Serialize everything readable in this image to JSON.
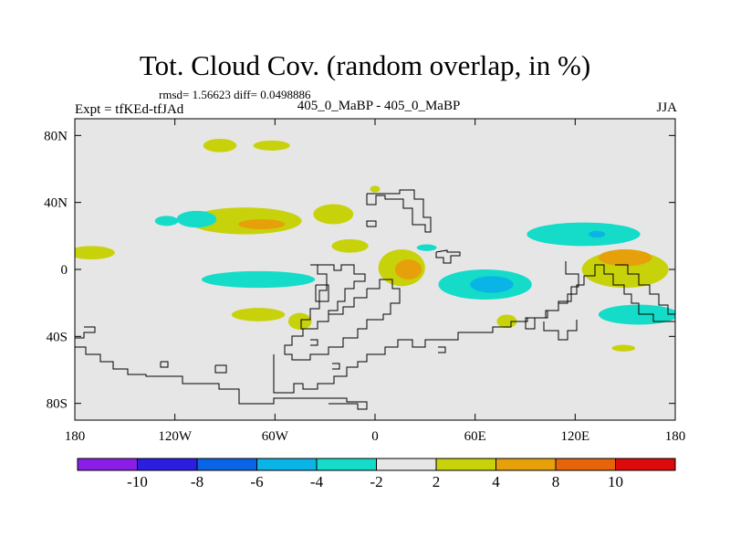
{
  "title": "Tot. Cloud Cov. (random overlap, in %)",
  "stats_line": "rmsd= 1.56623 diff= 0.0498886",
  "left_label": "Expt = tfKEd-tfJAd",
  "center_label": "405_0_MaBP - 405_0_MaBP",
  "right_label": "JJA",
  "chart_data": {
    "type": "heatmap",
    "title": "Tot. Cloud Cov. (random overlap, in %)",
    "projection": "cylindrical-equidistant",
    "xlim": [
      -180,
      180
    ],
    "ylim": [
      -90,
      90
    ],
    "x_ticks": [
      {
        "value": -180,
        "label": "180"
      },
      {
        "value": -120,
        "label": "120W"
      },
      {
        "value": -60,
        "label": "60W"
      },
      {
        "value": 0,
        "label": "0"
      },
      {
        "value": 60,
        "label": "60E"
      },
      {
        "value": 120,
        "label": "120E"
      },
      {
        "value": 180,
        "label": "180"
      }
    ],
    "y_ticks": [
      {
        "value": 80,
        "label": "80N"
      },
      {
        "value": 40,
        "label": "40N"
      },
      {
        "value": 0,
        "label": "0"
      },
      {
        "value": -40,
        "label": "40S"
      },
      {
        "value": -80,
        "label": "80S"
      }
    ],
    "colorbar": {
      "levels": [
        -10,
        -8,
        -6,
        -4,
        -2,
        2,
        4,
        8,
        10
      ],
      "labels": [
        "-10",
        "-8",
        "-6",
        "-4",
        "-2",
        "2",
        "4",
        "8",
        "10"
      ],
      "colors": [
        "#8a1ee6",
        "#2b1ee0",
        "#0a64e6",
        "#0ab4e6",
        "#14dcc8",
        "#e6e6e6",
        "#c8d20a",
        "#e6a00a",
        "#e6640a",
        "#dc0a0a"
      ]
    },
    "background_color": "#e6e6e6",
    "anomaly_regions": [
      {
        "bin": "2 to 4",
        "color": "#c8d20a",
        "lon": -93,
        "lat": 74,
        "rx": 10,
        "ry": 4
      },
      {
        "bin": "2 to 4",
        "color": "#c8d20a",
        "lon": -62,
        "lat": 74,
        "rx": 11,
        "ry": 3
      },
      {
        "bin": "2 to 4",
        "color": "#c8d20a",
        "lon": -78,
        "lat": 29,
        "rx": 34,
        "ry": 8
      },
      {
        "bin": "2 to 4",
        "color": "#c8d20a",
        "lon": -25,
        "lat": 33,
        "rx": 12,
        "ry": 6
      },
      {
        "bin": "2 to 4",
        "color": "#c8d20a",
        "lon": -170,
        "lat": 10,
        "rx": 14,
        "ry": 4
      },
      {
        "bin": "2 to 4",
        "color": "#c8d20a",
        "lon": -15,
        "lat": 14,
        "rx": 11,
        "ry": 4
      },
      {
        "bin": "2 to 4",
        "color": "#c8d20a",
        "lon": 16,
        "lat": 1,
        "rx": 14,
        "ry": 11
      },
      {
        "bin": "2 to 4",
        "color": "#c8d20a",
        "lon": 150,
        "lat": 0,
        "rx": 26,
        "ry": 11
      },
      {
        "bin": "2 to 4",
        "color": "#c8d20a",
        "lon": -70,
        "lat": -27,
        "rx": 16,
        "ry": 4
      },
      {
        "bin": "2 to 4",
        "color": "#c8d20a",
        "lon": -45,
        "lat": -31,
        "rx": 7,
        "ry": 5
      },
      {
        "bin": "2 to 4",
        "color": "#c8d20a",
        "lon": 79,
        "lat": -31,
        "rx": 6,
        "ry": 4
      },
      {
        "bin": "2 to 4",
        "color": "#c8d20a",
        "lon": 149,
        "lat": -47,
        "rx": 7,
        "ry": 2
      },
      {
        "bin": "2 to 4",
        "color": "#c8d20a",
        "lon": 0,
        "lat": 48,
        "rx": 3,
        "ry": 2
      },
      {
        "bin": "4 to 8",
        "color": "#e6a00a",
        "lon": -68,
        "lat": 27,
        "rx": 14,
        "ry": 3
      },
      {
        "bin": "4 to 8",
        "color": "#e6a00a",
        "lon": 20,
        "lat": 0,
        "rx": 8,
        "ry": 6
      },
      {
        "bin": "4 to 8",
        "color": "#e6a00a",
        "lon": 150,
        "lat": 7,
        "rx": 16,
        "ry": 5
      },
      {
        "bin": "-4 to -2",
        "color": "#14dcc8",
        "lon": -107,
        "lat": 30,
        "rx": 12,
        "ry": 5
      },
      {
        "bin": "-4 to -2",
        "color": "#14dcc8",
        "lon": -125,
        "lat": 29,
        "rx": 7,
        "ry": 3
      },
      {
        "bin": "-4 to -2",
        "color": "#14dcc8",
        "lon": -70,
        "lat": -6,
        "rx": 34,
        "ry": 5
      },
      {
        "bin": "-4 to -2",
        "color": "#14dcc8",
        "lon": 66,
        "lat": -9,
        "rx": 28,
        "ry": 9
      },
      {
        "bin": "-4 to -2",
        "color": "#14dcc8",
        "lon": 125,
        "lat": 21,
        "rx": 34,
        "ry": 7
      },
      {
        "bin": "-4 to -2",
        "color": "#14dcc8",
        "lon": 158,
        "lat": -27,
        "rx": 24,
        "ry": 6
      },
      {
        "bin": "-4 to -2",
        "color": "#14dcc8",
        "lon": 31,
        "lat": 13,
        "rx": 6,
        "ry": 2
      },
      {
        "bin": "-6 to -4",
        "color": "#0ab4e6",
        "lon": 70,
        "lat": -9,
        "rx": 13,
        "ry": 5
      },
      {
        "bin": "-6 to -4",
        "color": "#0ab4e6",
        "lon": 133,
        "lat": 21,
        "rx": 5,
        "ry": 2
      }
    ]
  }
}
